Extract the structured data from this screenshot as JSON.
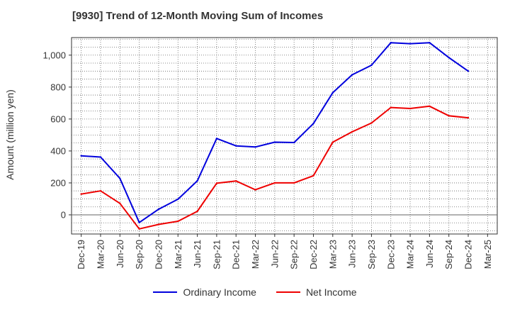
{
  "chart_data": {
    "type": "line",
    "title": "[9930]  Trend of 12-Month Moving Sum of Incomes",
    "xlabel": "",
    "ylabel": "Amount (million yen)",
    "categories": [
      "Dec-19",
      "Mar-20",
      "Jun-20",
      "Sep-20",
      "Dec-20",
      "Mar-21",
      "Jun-21",
      "Sep-21",
      "Dec-21",
      "Mar-22",
      "Jun-22",
      "Sep-22",
      "Dec-22",
      "Mar-23",
      "Jun-23",
      "Sep-23",
      "Dec-23",
      "Mar-24",
      "Jun-24",
      "Sep-24",
      "Dec-24",
      "Mar-25"
    ],
    "ylim": [
      -120,
      1110
    ],
    "yticks": [
      0,
      200,
      400,
      600,
      800,
      1000
    ],
    "ytick_labels": [
      "0",
      "200",
      "400",
      "600",
      "800",
      "1,000"
    ],
    "grid": true,
    "legend_position": "bottom",
    "series": [
      {
        "name": "Ordinary Income",
        "color": "#0000dd",
        "values": [
          370,
          362,
          228,
          -48,
          35,
          98,
          213,
          478,
          432,
          425,
          455,
          453,
          572,
          765,
          877,
          937,
          1078,
          1072,
          1078,
          985,
          900,
          null
        ]
      },
      {
        "name": "Net Income",
        "color": "#ee0000",
        "values": [
          130,
          150,
          72,
          -88,
          -60,
          -40,
          22,
          198,
          212,
          157,
          200,
          200,
          245,
          455,
          520,
          575,
          672,
          666,
          680,
          620,
          608,
          null
        ]
      }
    ]
  }
}
